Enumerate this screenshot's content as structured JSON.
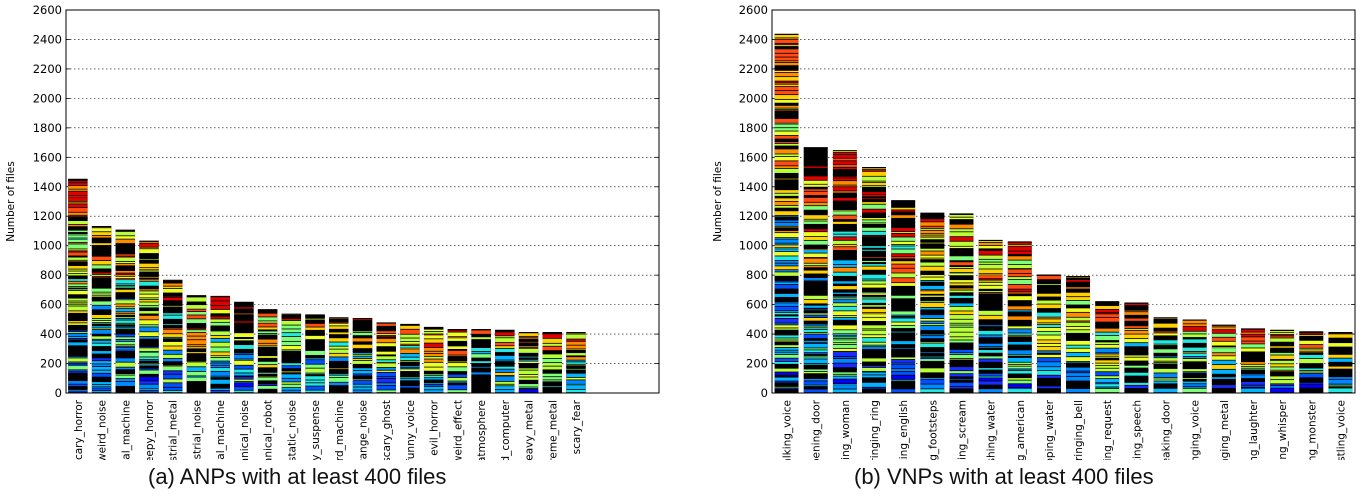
{
  "charts": [
    {
      "caption": "(a) ANPs with at least 400 files",
      "chart_data": {
        "type": "bar",
        "stacked": true,
        "ylabel": "Number of files",
        "ylim": [
          0,
          2600
        ],
        "yticks": [
          "0",
          "200",
          "400",
          "600",
          "800",
          "1000",
          "1200",
          "1400",
          "1600",
          "1800",
          "2000",
          "2200",
          "2400",
          "2600"
        ],
        "grid": "horizontal dotted",
        "categories": [
          "scary_horror",
          "weird_noise",
          "mechanical_machine",
          "creepy_horror",
          "industrial_metal",
          "industrial_noise",
          "industrial_machine",
          "mechanical_noise",
          "mechanical_robot",
          "static_noise",
          "scary_suspense",
          "weird_machine",
          "strange_noise",
          "scary_ghost",
          "funny_voice",
          "evil_horror",
          "weird_effect",
          "scary_atmosphere",
          "weird_computer",
          "heavy_metal",
          "extreme_metal",
          "scary_fear"
        ],
        "values": [
          1450,
          1130,
          1105,
          1030,
          765,
          660,
          655,
          615,
          565,
          535,
          530,
          510,
          505,
          475,
          465,
          445,
          430,
          430,
          425,
          410,
          410,
          410
        ],
        "x_slots": 25
      }
    },
    {
      "caption": "(b) VNPs with at least 400 files",
      "chart_data": {
        "type": "bar",
        "stacked": true,
        "ylabel": "Number of files",
        "ylim": [
          0,
          2600
        ],
        "yticks": [
          "0",
          "200",
          "400",
          "600",
          "800",
          "1000",
          "1200",
          "1400",
          "1600",
          "1800",
          "2000",
          "2200",
          "2400",
          "2600"
        ],
        "grid": "horizontal dotted",
        "categories": [
          "talking_voice",
          "opening_door",
          "talking_woman",
          "ringing_ring",
          "talking_english",
          "walking_footsteps",
          "screaming_scream",
          "splashing_water",
          "talking_american",
          "dripping_water",
          "ringing_bell",
          "talking_request",
          "talking_speech",
          "squeaking_door",
          "singing_voice",
          "ringing_metal",
          "laughing_laughter",
          "whispering_whisper",
          "growling_monster",
          "whistling_voice"
        ],
        "values": [
          2435,
          1665,
          1645,
          1530,
          1305,
          1220,
          1215,
          1035,
          1025,
          800,
          790,
          620,
          610,
          510,
          495,
          460,
          435,
          425,
          415,
          410
        ],
        "x_slots": 20
      }
    }
  ]
}
